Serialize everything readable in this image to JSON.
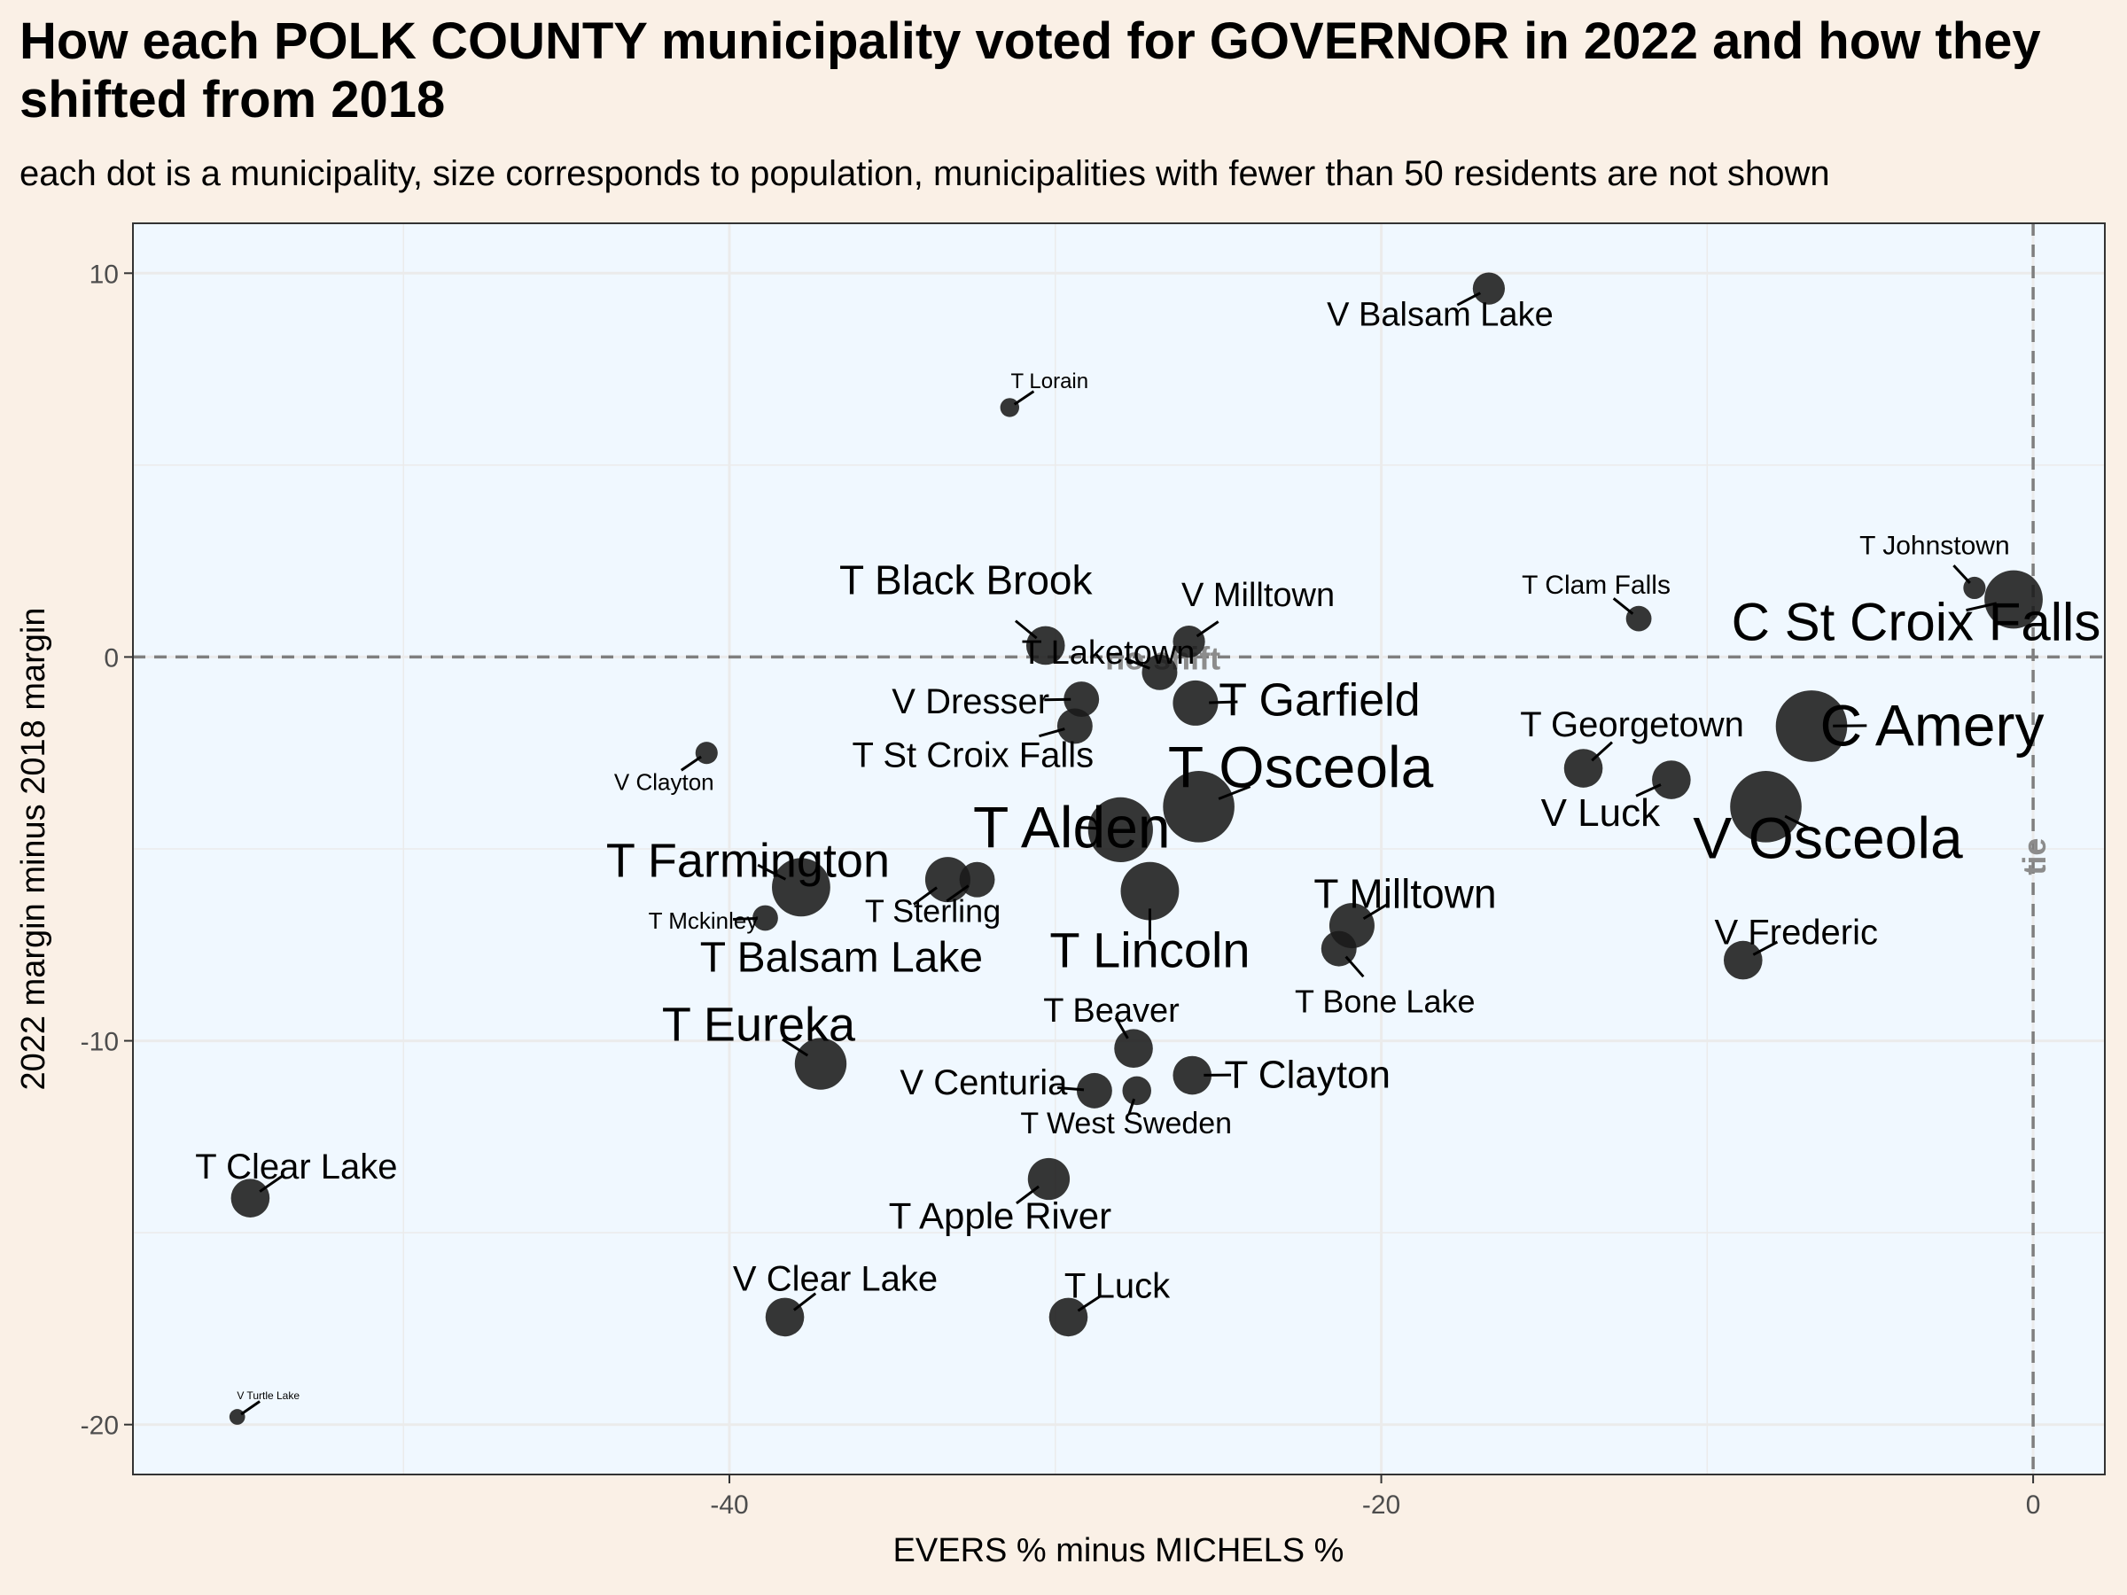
{
  "title": "How each POLK COUNTY municipality voted for GOVERNOR in 2022 and how they shifted from 2018",
  "subtitle": "each dot is a municipality, size corresponds to population, municipalities with fewer than 50 residents are not shown",
  "colors": {
    "page_background": "#faf0e6",
    "panel_background": "#f0f8ff",
    "point": "#1a1a1a",
    "reference_line": "#7f7f7f",
    "grid": "#ebebeb"
  },
  "chart_data": {
    "type": "scatter",
    "title": "How each POLK COUNTY municipality voted for GOVERNOR in 2022 and how they shifted from 2018",
    "subtitle": "each dot is a municipality, size corresponds to population, municipalities with fewer than 50 residents are not shown",
    "xlabel": "EVERS % minus MICHELS %",
    "ylabel": "2022 margin minus 2018 margin",
    "xlim": [
      -58.3,
      2.2
    ],
    "ylim": [
      -21.3,
      11.3
    ],
    "x_ticks": [
      -40,
      -20,
      0
    ],
    "y_ticks": [
      -20,
      -10,
      0,
      10
    ],
    "grid": true,
    "reference_lines": [
      {
        "axis": "y",
        "value": 0,
        "label": "no shift"
      },
      {
        "axis": "x",
        "value": 0,
        "label": "tie"
      }
    ],
    "points": [
      {
        "name": "V Balsam Lake",
        "x": -16.7,
        "y": 9.6,
        "size": 3
      },
      {
        "name": "T Lorain",
        "x": -31.4,
        "y": 6.5,
        "size": 1
      },
      {
        "name": "T Johnstown",
        "x": -1.8,
        "y": 1.8,
        "size": 1.5
      },
      {
        "name": "C St Croix Falls",
        "x": -0.6,
        "y": 1.5,
        "size": 7
      },
      {
        "name": "T Clam Falls",
        "x": -12.1,
        "y": 1.0,
        "size": 2
      },
      {
        "name": "T Black Brook",
        "x": -30.3,
        "y": 0.3,
        "size": 4
      },
      {
        "name": "V Milltown",
        "x": -25.9,
        "y": 0.4,
        "size": 3
      },
      {
        "name": "T Laketown",
        "x": -26.8,
        "y": -0.4,
        "size": 3.5
      },
      {
        "name": "V Dresser",
        "x": -29.2,
        "y": -1.1,
        "size": 3.5
      },
      {
        "name": "T Garfield",
        "x": -25.7,
        "y": -1.2,
        "size": 5
      },
      {
        "name": "C Amery",
        "x": -6.8,
        "y": -1.8,
        "size": 9
      },
      {
        "name": "T St Croix Falls",
        "x": -29.4,
        "y": -1.8,
        "size": 3.5
      },
      {
        "name": "V Clayton",
        "x": -40.7,
        "y": -2.5,
        "size": 1.5
      },
      {
        "name": "T Georgetown",
        "x": -13.8,
        "y": -2.9,
        "size": 4
      },
      {
        "name": "V Luck",
        "x": -11.1,
        "y": -3.2,
        "size": 4
      },
      {
        "name": "T Osceola",
        "x": -25.6,
        "y": -3.9,
        "size": 9
      },
      {
        "name": "V Osceola",
        "x": -8.2,
        "y": -3.9,
        "size": 9
      },
      {
        "name": "T Alden",
        "x": -28.0,
        "y": -4.5,
        "size": 8
      },
      {
        "name": "T Sterling",
        "x": -32.4,
        "y": -5.8,
        "size": 3.5
      },
      {
        "name": "T Balsam Lake",
        "x": -33.3,
        "y": -5.8,
        "size": 5
      },
      {
        "name": "T Farmington",
        "x": -37.8,
        "y": -6.0,
        "size": 7
      },
      {
        "name": "T Lincoln",
        "x": -27.1,
        "y": -6.1,
        "size": 7
      },
      {
        "name": "T Mckinley",
        "x": -38.9,
        "y": -6.8,
        "size": 2
      },
      {
        "name": "T Milltown",
        "x": -20.9,
        "y": -7.0,
        "size": 5
      },
      {
        "name": "T Bone Lake",
        "x": -21.3,
        "y": -7.6,
        "size": 3.5
      },
      {
        "name": "V Frederic",
        "x": -8.9,
        "y": -7.9,
        "size": 4
      },
      {
        "name": "T Beaver",
        "x": -27.6,
        "y": -10.2,
        "size": 4
      },
      {
        "name": "T Eureka",
        "x": -37.2,
        "y": -10.6,
        "size": 6
      },
      {
        "name": "T Clayton",
        "x": -25.8,
        "y": -10.9,
        "size": 4
      },
      {
        "name": "V Centuria",
        "x": -28.8,
        "y": -11.3,
        "size": 3.5
      },
      {
        "name": "T West Sweden",
        "x": -27.5,
        "y": -11.3,
        "size": 2.5
      },
      {
        "name": "T Apple River",
        "x": -30.2,
        "y": -13.6,
        "size": 4.5
      },
      {
        "name": "T Clear Lake",
        "x": -54.7,
        "y": -14.1,
        "size": 4
      },
      {
        "name": "V Clear Lake",
        "x": -38.3,
        "y": -17.2,
        "size": 4
      },
      {
        "name": "T Luck",
        "x": -29.6,
        "y": -17.2,
        "size": 4
      },
      {
        "name": "V Turtle Lake",
        "x": -55.1,
        "y": -19.8,
        "size": 0.5
      }
    ]
  }
}
